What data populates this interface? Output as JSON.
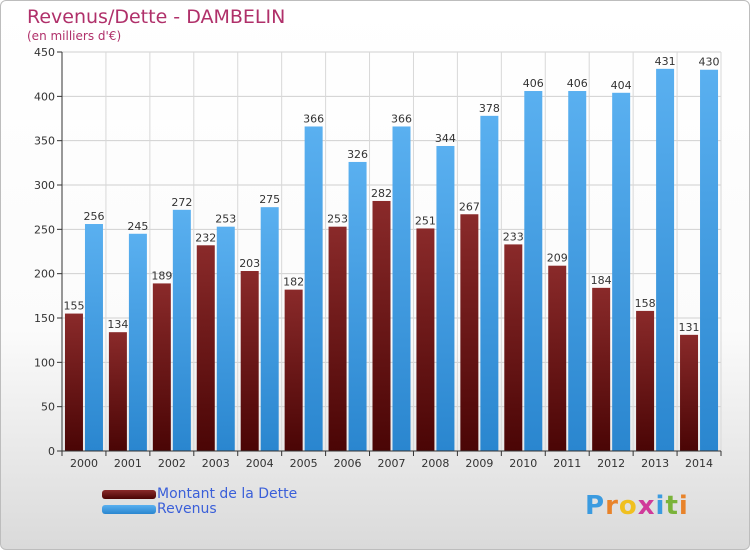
{
  "title": "Revenus/Dette - DAMBELIN",
  "subtitle": "(en milliers d'€)",
  "colors": {
    "debt": "#6b1010",
    "revenue": "#3d9ee6",
    "title": "#b0306a",
    "legend_text": "#3a5fd9"
  },
  "legend": [
    {
      "label": "Montant de la Dette"
    },
    {
      "label": "Revenus"
    }
  ],
  "logo": {
    "letters": [
      "P",
      "r",
      "o",
      "x",
      "i",
      "t",
      "i"
    ]
  },
  "chart_data": {
    "type": "bar",
    "title": "Revenus/Dette - DAMBELIN",
    "ylabel": "(en milliers d'€)",
    "categories": [
      "2000",
      "2001",
      "2002",
      "2003",
      "2004",
      "2005",
      "2006",
      "2007",
      "2008",
      "2009",
      "2010",
      "2011",
      "2012",
      "2013",
      "2014"
    ],
    "ylim": [
      0,
      450
    ],
    "yticks": [
      0,
      50,
      100,
      150,
      200,
      250,
      300,
      350,
      400,
      450
    ],
    "grid": true,
    "legend_position": "bottom-left",
    "series": [
      {
        "name": "Montant de la Dette",
        "values": [
          155,
          134,
          189,
          232,
          203,
          182,
          253,
          282,
          251,
          267,
          233,
          209,
          184,
          158,
          131
        ]
      },
      {
        "name": "Revenus",
        "values": [
          256,
          245,
          272,
          253,
          275,
          366,
          326,
          366,
          344,
          378,
          406,
          406,
          404,
          431,
          430
        ]
      }
    ]
  }
}
